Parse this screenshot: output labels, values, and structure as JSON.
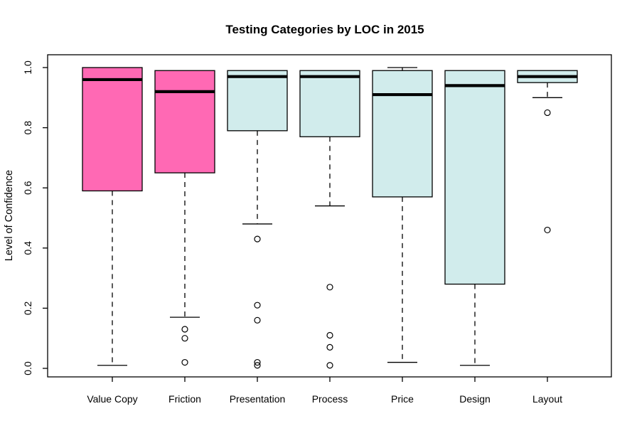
{
  "chart_data": {
    "type": "boxplot",
    "title": "Testing Categories by LOC in 2015",
    "xlabel": "",
    "ylabel": "Level of Confidence",
    "ylim": [
      0.0,
      1.0
    ],
    "yticks": [
      0.0,
      0.2,
      0.4,
      0.6,
      0.8,
      1.0
    ],
    "ytick_labels": [
      "0.0",
      "0.2",
      "0.4",
      "0.6",
      "0.8",
      "1.0"
    ],
    "grid": false,
    "legend": "none",
    "box_border_color": "#000000",
    "categories": [
      "Value Copy",
      "Friction",
      "Presentation",
      "Process",
      "Price",
      "Design",
      "Layout"
    ],
    "series": [
      {
        "name": "Value Copy",
        "fill": "#FF69B4",
        "q1": 0.59,
        "median": 0.96,
        "q3": 1.0,
        "whisker_low": 0.01,
        "whisker_high": 1.0,
        "outliers": []
      },
      {
        "name": "Friction",
        "fill": "#FF69B4",
        "q1": 0.65,
        "median": 0.92,
        "q3": 0.99,
        "whisker_low": 0.17,
        "whisker_high": 0.99,
        "outliers": [
          0.13,
          0.1,
          0.02
        ]
      },
      {
        "name": "Presentation",
        "fill": "#D1ECEC",
        "q1": 0.79,
        "median": 0.97,
        "q3": 0.99,
        "whisker_low": 0.48,
        "whisker_high": 0.99,
        "outliers": [
          0.43,
          0.21,
          0.16,
          0.02,
          0.01
        ]
      },
      {
        "name": "Process",
        "fill": "#D1ECEC",
        "q1": 0.77,
        "median": 0.97,
        "q3": 0.99,
        "whisker_low": 0.54,
        "whisker_high": 0.99,
        "outliers": [
          0.27,
          0.11,
          0.07,
          0.01
        ]
      },
      {
        "name": "Price",
        "fill": "#D1ECEC",
        "q1": 0.57,
        "median": 0.91,
        "q3": 0.99,
        "whisker_low": 0.02,
        "whisker_high": 1.0,
        "outliers": []
      },
      {
        "name": "Design",
        "fill": "#D1ECEC",
        "q1": 0.28,
        "median": 0.94,
        "q3": 0.99,
        "whisker_low": 0.01,
        "whisker_high": 0.99,
        "outliers": []
      },
      {
        "name": "Layout",
        "fill": "#D1ECEC",
        "q1": 0.95,
        "median": 0.97,
        "q3": 0.99,
        "whisker_low": 0.9,
        "whisker_high": 0.99,
        "outliers": [
          0.85,
          0.46
        ]
      }
    ]
  }
}
